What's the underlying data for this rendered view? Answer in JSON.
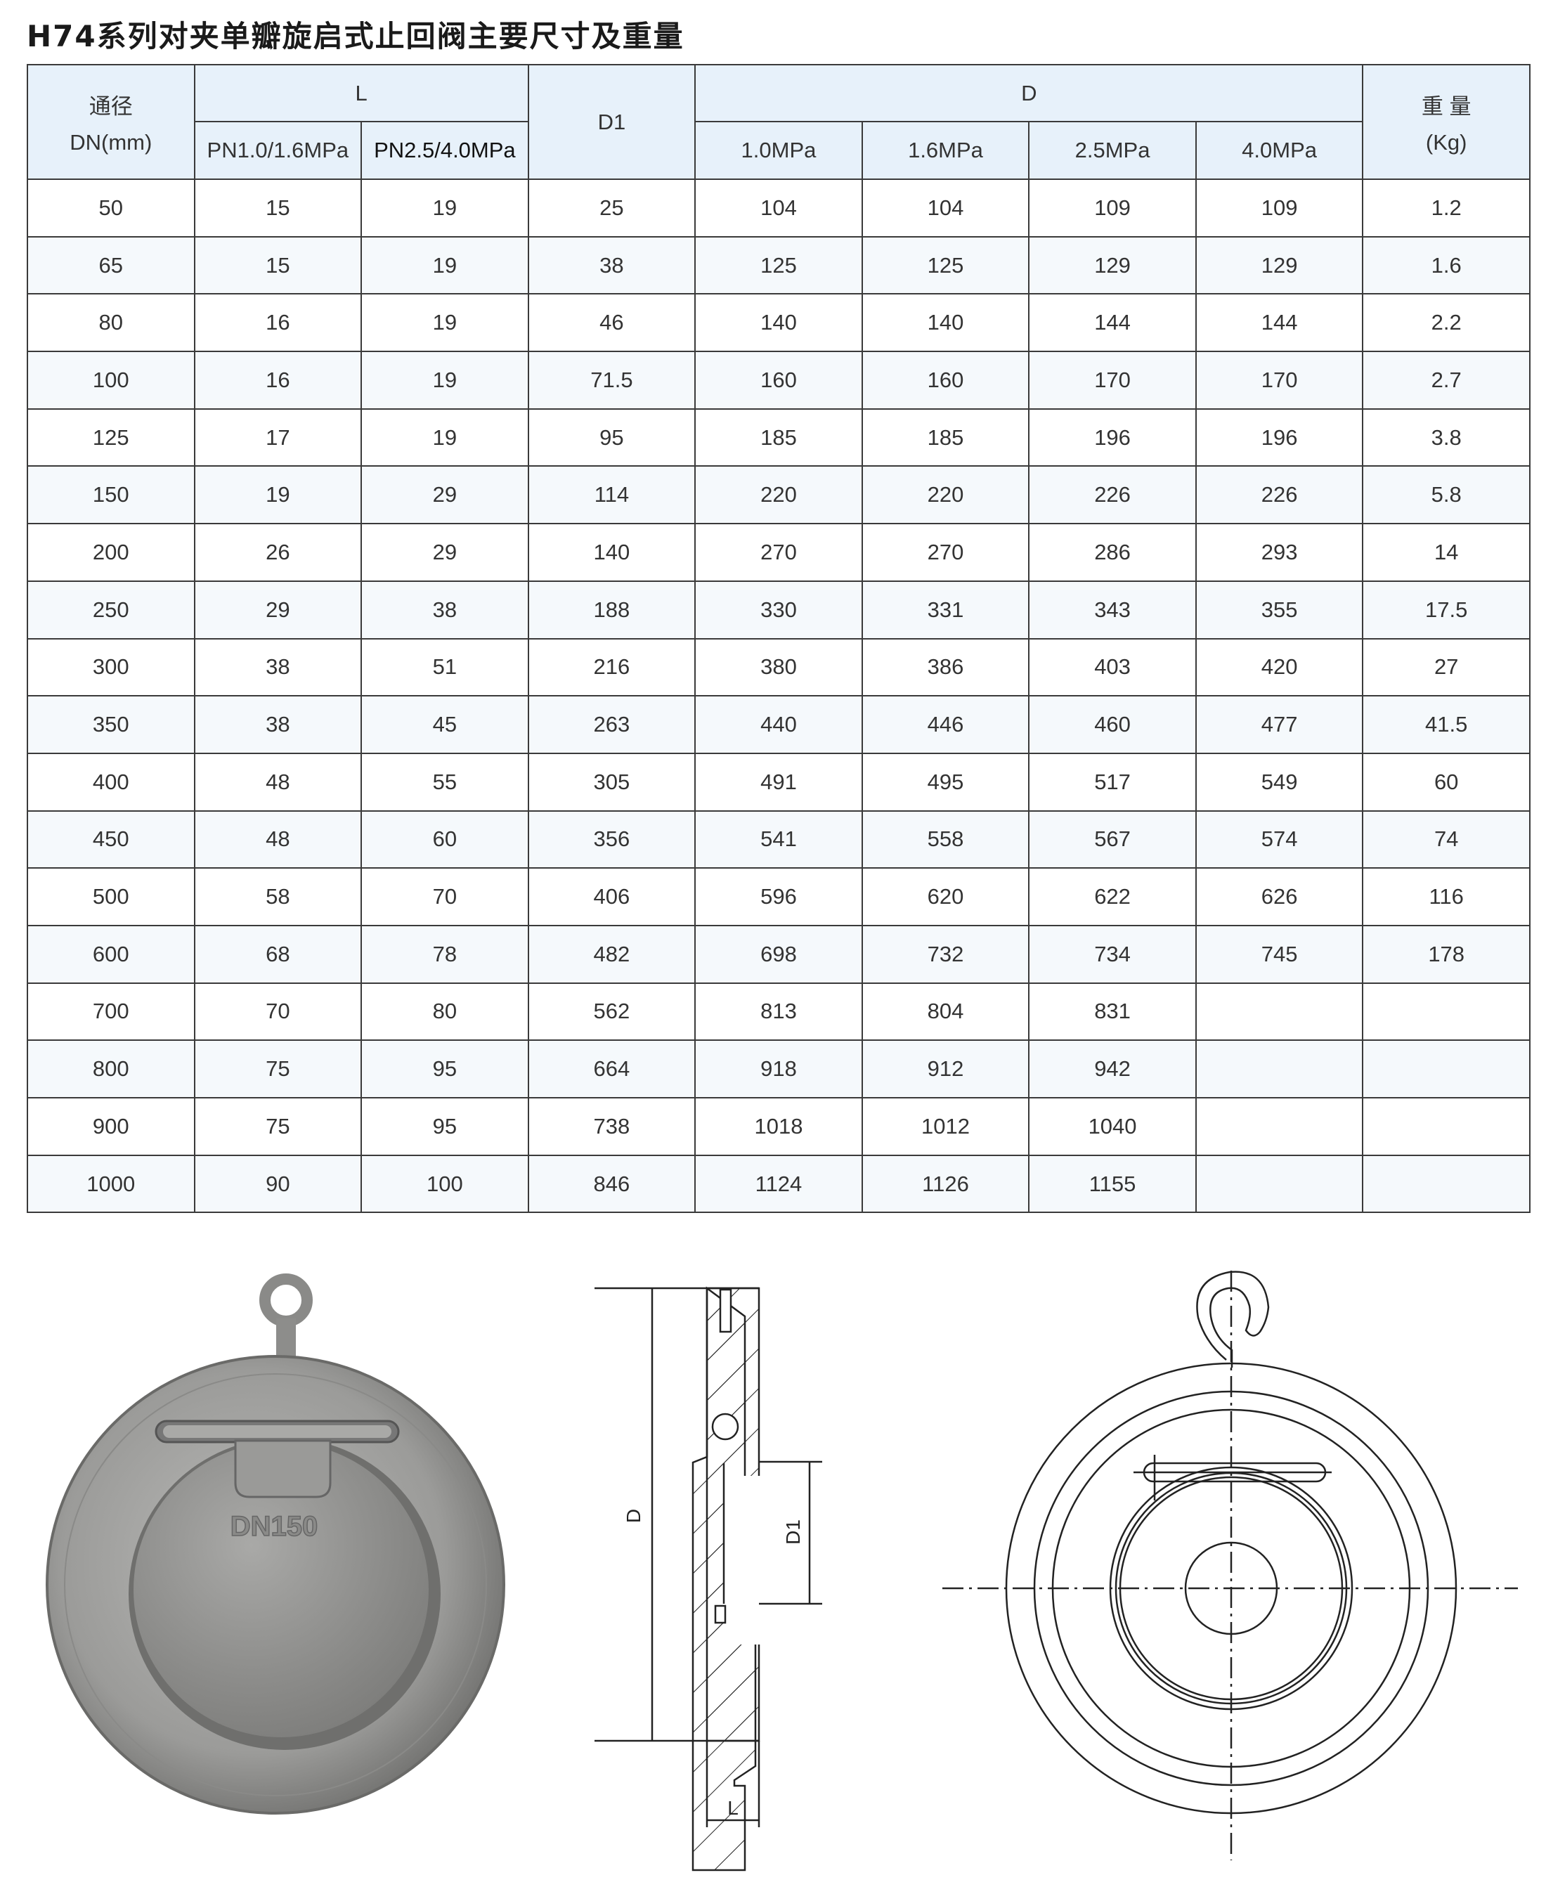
{
  "title": "H74系列对夹单瓣旋启式止回阀主要尺寸及重量",
  "table": {
    "headers": {
      "dn_line1": "通径",
      "dn_line2": "DN(mm)",
      "L": "L",
      "L_sub": [
        "PN1.0/1.6MPa",
        "PN2.5/4.0MPa"
      ],
      "D1": "D1",
      "D": "D",
      "D_sub": [
        "1.0MPa",
        "1.6MPa",
        "2.5MPa",
        "4.0MPa"
      ],
      "weight_line1": "重 量",
      "weight_line2": "(Kg)"
    },
    "rows": [
      [
        "50",
        "15",
        "19",
        "25",
        "104",
        "104",
        "109",
        "109",
        "1.2"
      ],
      [
        "65",
        "15",
        "19",
        "38",
        "125",
        "125",
        "129",
        "129",
        "1.6"
      ],
      [
        "80",
        "16",
        "19",
        "46",
        "140",
        "140",
        "144",
        "144",
        "2.2"
      ],
      [
        "100",
        "16",
        "19",
        "71.5",
        "160",
        "160",
        "170",
        "170",
        "2.7"
      ],
      [
        "125",
        "17",
        "19",
        "95",
        "185",
        "185",
        "196",
        "196",
        "3.8"
      ],
      [
        "150",
        "19",
        "29",
        "114",
        "220",
        "220",
        "226",
        "226",
        "5.8"
      ],
      [
        "200",
        "26",
        "29",
        "140",
        "270",
        "270",
        "286",
        "293",
        "14"
      ],
      [
        "250",
        "29",
        "38",
        "188",
        "330",
        "331",
        "343",
        "355",
        "17.5"
      ],
      [
        "300",
        "38",
        "51",
        "216",
        "380",
        "386",
        "403",
        "420",
        "27"
      ],
      [
        "350",
        "38",
        "45",
        "263",
        "440",
        "446",
        "460",
        "477",
        "41.5"
      ],
      [
        "400",
        "48",
        "55",
        "305",
        "491",
        "495",
        "517",
        "549",
        "60"
      ],
      [
        "450",
        "48",
        "60",
        "356",
        "541",
        "558",
        "567",
        "574",
        "74"
      ],
      [
        "500",
        "58",
        "70",
        "406",
        "596",
        "620",
        "622",
        "626",
        "116"
      ],
      [
        "600",
        "68",
        "78",
        "482",
        "698",
        "732",
        "734",
        "745",
        "178"
      ],
      [
        "700",
        "70",
        "80",
        "562",
        "813",
        "804",
        "831",
        "",
        ""
      ],
      [
        "800",
        "75",
        "95",
        "664",
        "918",
        "912",
        "942",
        "",
        ""
      ],
      [
        "900",
        "75",
        "95",
        "738",
        "1018",
        "1012",
        "1040",
        "",
        ""
      ],
      [
        "1000",
        "90",
        "100",
        "846",
        "1124",
        "1126",
        "1155",
        "",
        ""
      ]
    ]
  },
  "photo": {
    "marking": "DN150"
  },
  "drawing": {
    "label_D": "D",
    "label_D1": "D1",
    "label_L": "L"
  },
  "colors": {
    "header_bg": "#e7f1fa",
    "stripe_bg": "#f5f9fc",
    "border": "#3a3a3a"
  }
}
